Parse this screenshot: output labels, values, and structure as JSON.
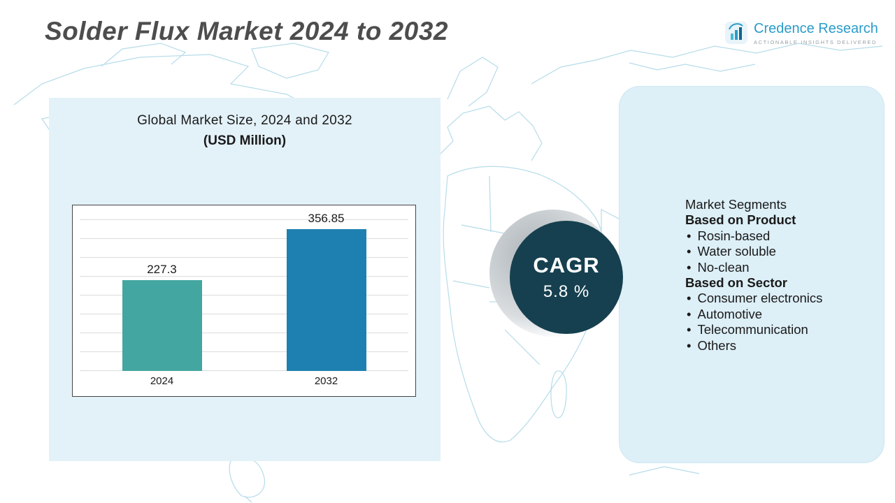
{
  "header": {
    "title": "Solder Flux Market 2024 to 2032",
    "logo": {
      "name": "Credence Research",
      "tagline": "Actionable Insights Delivered"
    }
  },
  "left_panel": {
    "heading_line1": "Global Market Size, 2024 and 2032",
    "heading_line2": "(USD Million)"
  },
  "chart_data": {
    "type": "bar",
    "categories": [
      "2024",
      "2032"
    ],
    "values": [
      227.3,
      356.85
    ],
    "value_labels": [
      "227.3",
      "356.85"
    ],
    "title": "Global Market Size, 2024 and 2032 (USD Million)",
    "xlabel": "",
    "ylabel": "",
    "ylim": [
      0,
      400
    ],
    "grid": true,
    "legend": false,
    "bar_colors": [
      "#44a6a1",
      "#1e80b0"
    ]
  },
  "cagr": {
    "label": "CAGR",
    "value": "5.8 %"
  },
  "segments": {
    "heading": "Market Segments",
    "groups": [
      {
        "title": "Based on  Product",
        "items": [
          "Rosin-based",
          "Water soluble",
          "No-clean"
        ]
      },
      {
        "title": "Based on Sector",
        "items": [
          "Consumer electronics",
          "Automotive",
          "Telecommunication",
          "Others"
        ]
      }
    ]
  },
  "colors": {
    "accent_teal": "#44a6a1",
    "accent_blue": "#1e80b0",
    "cagr_circle": "#16404f",
    "panel_blue": "#e3f1f8",
    "map_line": "#b6dcea",
    "title_gray": "#4d4d4d",
    "logo_blue": "#2b9cc9"
  }
}
